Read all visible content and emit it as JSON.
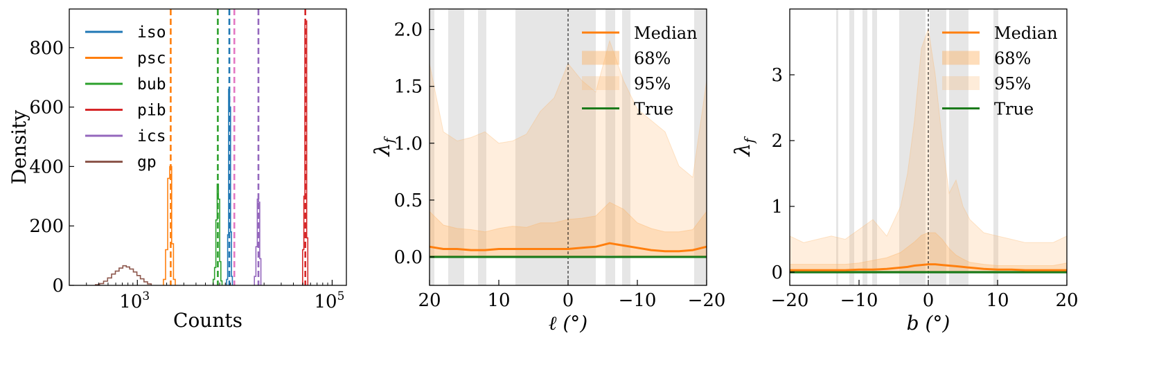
{
  "chart_data": [
    {
      "type": "histogram",
      "xlabel": "Counts",
      "ylabel": "Density",
      "xscale": "log",
      "xlim": [
        200,
        140000
      ],
      "ylim": [
        0,
        930
      ],
      "xticks": [
        1000,
        100000
      ],
      "xtick_labels": [
        {
          "base": "10",
          "exp": "3"
        },
        {
          "base": "10",
          "exp": "5"
        }
      ],
      "yticks": [
        0,
        200,
        400,
        600,
        800
      ],
      "ytick_labels": [
        "0",
        "200",
        "400",
        "600",
        "800"
      ],
      "legend_placement": "upper-left",
      "series": [
        {
          "name": "iso",
          "color": "#1f77b4",
          "true_value": 8800,
          "bins": [
            [
              8350,
              20
            ],
            [
              8550,
              170
            ],
            [
              8750,
              660
            ],
            [
              8950,
              600
            ],
            [
              9150,
              180
            ],
            [
              9350,
              30
            ]
          ]
        },
        {
          "name": "psc",
          "color": "#ff7f0e",
          "true_value": 2200,
          "bins": [
            [
              1900,
              20
            ],
            [
              2000,
              120
            ],
            [
              2100,
              360
            ],
            [
              2200,
              400
            ],
            [
              2300,
              140
            ],
            [
              2400,
              20
            ]
          ]
        },
        {
          "name": "bub",
          "color": "#2ca02c",
          "true_value": 6700,
          "bins": [
            [
              6100,
              20
            ],
            [
              6300,
              60
            ],
            [
              6500,
              220
            ],
            [
              6700,
              340
            ],
            [
              6900,
              290
            ],
            [
              7100,
              80
            ],
            [
              7300,
              15
            ]
          ]
        },
        {
          "name": "pib",
          "color": "#d62728",
          "true_value": 53000,
          "bins": [
            [
              50500,
              120
            ],
            [
              52000,
              300
            ],
            [
              53000,
              880
            ],
            [
              54000,
              890
            ],
            [
              55500,
              160
            ]
          ]
        },
        {
          "name": "ics",
          "color": "#9467bd",
          "true_value": 17500,
          "bins": [
            [
              16200,
              30
            ],
            [
              16800,
              130
            ],
            [
              17300,
              290
            ],
            [
              17800,
              280
            ],
            [
              18300,
              90
            ]
          ]
        },
        {
          "name": "gp",
          "color": "#8c564b",
          "true_value": null,
          "bins": [
            [
              390,
              2
            ],
            [
              430,
              6
            ],
            [
              470,
              14
            ],
            [
              520,
              25
            ],
            [
              570,
              38
            ],
            [
              620,
              48
            ],
            [
              680,
              58
            ],
            [
              740,
              66
            ],
            [
              800,
              62
            ],
            [
              870,
              55
            ],
            [
              950,
              45
            ],
            [
              1030,
              33
            ],
            [
              1120,
              22
            ],
            [
              1220,
              12
            ],
            [
              1330,
              5
            ]
          ]
        }
      ],
      "extra_dashed_lines": [
        {
          "color": "#e377c2",
          "x": 9900
        }
      ]
    },
    {
      "type": "area",
      "xlabel": "ℓ (°)",
      "ylabel": "λ_f",
      "xlim": [
        20,
        -20
      ],
      "ylim": [
        -0.25,
        2.18
      ],
      "xticks": [
        20,
        10,
        0,
        -10,
        -20
      ],
      "xtick_labels": [
        "20",
        "10",
        "0",
        "−10",
        "−20"
      ],
      "yticks": [
        0,
        0.5,
        1,
        1.5,
        2
      ],
      "ytick_labels": [
        "0.0",
        "0.5",
        "1.0",
        "1.5",
        "2.0"
      ],
      "legend_placement": "upper-right",
      "legend": [
        "Median",
        "68%",
        "95%",
        "True"
      ],
      "colors": {
        "median": "#ff7f0e",
        "band": "#fdb366",
        "true": "#1a7a1a",
        "shade": "#e6e6e6"
      },
      "shaded_regions": [
        [
          20,
          19.3
        ],
        [
          17.3,
          15
        ],
        [
          13,
          11.8
        ],
        [
          7.6,
          -4
        ],
        [
          -5.4,
          -6.8
        ],
        [
          -7.8,
          -9
        ],
        [
          -18.2,
          -20
        ]
      ],
      "vline_x": 0,
      "true_value": 0,
      "x": [
        20,
        18,
        16,
        14,
        12,
        10,
        8,
        6,
        4,
        2,
        0,
        -2,
        -4,
        -6,
        -8,
        -10,
        -12,
        -14,
        -16,
        -18,
        -20
      ],
      "median": [
        0.09,
        0.07,
        0.07,
        0.06,
        0.06,
        0.07,
        0.07,
        0.07,
        0.07,
        0.07,
        0.07,
        0.08,
        0.09,
        0.12,
        0.1,
        0.08,
        0.06,
        0.05,
        0.05,
        0.06,
        0.09
      ],
      "lower68": [
        0.01,
        0.01,
        0.01,
        0.01,
        0.01,
        0.01,
        0.01,
        0.01,
        0.01,
        0.01,
        0.01,
        0.01,
        0.01,
        0.02,
        0.01,
        0.01,
        0.01,
        0.01,
        0.01,
        0.01,
        0.01
      ],
      "upper68": [
        0.4,
        0.28,
        0.25,
        0.24,
        0.22,
        0.25,
        0.27,
        0.26,
        0.3,
        0.3,
        0.33,
        0.34,
        0.36,
        0.48,
        0.42,
        0.3,
        0.25,
        0.22,
        0.22,
        0.24,
        0.4
      ],
      "lower95": [
        0.0,
        0.0,
        0.0,
        0.0,
        0.0,
        0.0,
        0.0,
        0.0,
        0.0,
        0.0,
        0.0,
        0.0,
        0.0,
        0.0,
        0.0,
        0.0,
        0.0,
        0.0,
        0.0,
        0.0,
        0.0
      ],
      "upper95": [
        1.7,
        1.1,
        1.02,
        1.05,
        1.1,
        1.0,
        1.02,
        1.08,
        1.28,
        1.4,
        1.7,
        1.55,
        1.45,
        1.9,
        1.55,
        1.3,
        1.2,
        1.1,
        0.8,
        0.7,
        1.55
      ]
    },
    {
      "type": "area",
      "xlabel": "b (°)",
      "ylabel": "λ_f",
      "xlim": [
        -20,
        20
      ],
      "ylim": [
        -0.2,
        4.0
      ],
      "xticks": [
        -20,
        -10,
        0,
        10,
        20
      ],
      "xtick_labels": [
        "−20",
        "−10",
        "0",
        "10",
        "20"
      ],
      "yticks": [
        0,
        1,
        2,
        3
      ],
      "ytick_labels": [
        "0",
        "1",
        "2",
        "3"
      ],
      "legend_placement": "upper-right",
      "legend": [
        "Median",
        "68%",
        "95%",
        "True"
      ],
      "colors": {
        "median": "#ff7f0e",
        "band": "#fdb366",
        "true": "#1a7a1a",
        "shade": "#e6e6e6"
      },
      "shaded_regions": [
        [
          -13.3,
          -13.0
        ],
        [
          -11.4,
          -10.7
        ],
        [
          -9.5,
          -8.8
        ],
        [
          -8.1,
          -7.4
        ],
        [
          -4.2,
          -0.4
        ],
        [
          0.2,
          2.6
        ],
        [
          3.0,
          5.8
        ],
        [
          9.4,
          10.1
        ]
      ],
      "vline_x": 0,
      "true_value": 0,
      "x": [
        -20,
        -18,
        -16,
        -14,
        -12,
        -10,
        -8,
        -6,
        -4,
        -3,
        -2,
        -1,
        0,
        1,
        2,
        3,
        4,
        5,
        6,
        8,
        10,
        12,
        14,
        16,
        18,
        20
      ],
      "median": [
        0.03,
        0.03,
        0.03,
        0.03,
        0.03,
        0.04,
        0.04,
        0.05,
        0.07,
        0.08,
        0.1,
        0.11,
        0.12,
        0.12,
        0.11,
        0.1,
        0.09,
        0.08,
        0.07,
        0.05,
        0.04,
        0.04,
        0.03,
        0.03,
        0.03,
        0.03
      ],
      "lower68": [
        0.0,
        0.0,
        0.0,
        0.0,
        0.0,
        0.0,
        0.0,
        0.0,
        0.0,
        0.0,
        0.0,
        0.0,
        0.0,
        0.0,
        0.0,
        0.0,
        0.0,
        0.0,
        0.0,
        0.0,
        0.0,
        0.0,
        0.0,
        0.0,
        0.0,
        0.0
      ],
      "upper68": [
        0.12,
        0.12,
        0.12,
        0.12,
        0.12,
        0.14,
        0.18,
        0.22,
        0.3,
        0.38,
        0.46,
        0.56,
        0.6,
        0.6,
        0.5,
        0.36,
        0.26,
        0.2,
        0.15,
        0.12,
        0.1,
        0.1,
        0.1,
        0.1,
        0.1,
        0.14
      ],
      "lower95": [
        0.0,
        0.0,
        0.0,
        0.0,
        0.0,
        0.0,
        0.0,
        0.0,
        0.0,
        0.0,
        0.0,
        0.0,
        0.0,
        0.0,
        0.0,
        0.0,
        0.0,
        0.0,
        0.0,
        0.0,
        0.0,
        0.0,
        0.0,
        0.0,
        0.0,
        0.0
      ],
      "upper95": [
        0.55,
        0.45,
        0.5,
        0.55,
        0.5,
        0.65,
        0.8,
        0.55,
        1.0,
        1.5,
        2.3,
        3.4,
        3.7,
        3.0,
        2.0,
        1.2,
        1.4,
        1.0,
        0.8,
        0.6,
        0.55,
        0.5,
        0.45,
        0.45,
        0.45,
        0.55
      ]
    }
  ]
}
